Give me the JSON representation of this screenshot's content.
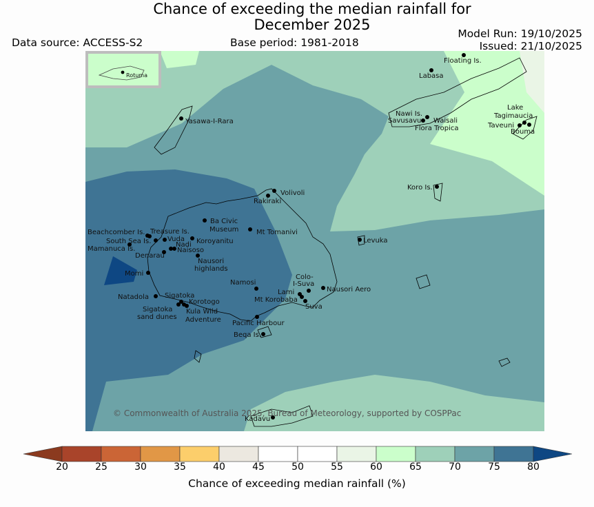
{
  "title_line1": "Chance of exceeding the median rainfall for",
  "title_line2": "December 2025",
  "data_source": "Data source: ACCESS-S2",
  "base_period": "Base period: 1981-2018",
  "model_run": "Model Run: 19/10/2025",
  "issued": "Issued: 21/10/2025",
  "inset_label": "Rotuma",
  "copyright": "© Commonwealth of Australia 2025, Bureau of Meteorology, supported by COSPPac",
  "colorbar": {
    "label": "Chance of exceeding median rainfall (%)",
    "ticks": [
      "20",
      "25",
      "30",
      "35",
      "40",
      "45",
      "50",
      "55",
      "60",
      "65",
      "70",
      "75",
      "80"
    ],
    "colors": [
      "#a9442a",
      "#cb6536",
      "#e19746",
      "#fcce6b",
      "#ece8e0",
      "#ffffff",
      "#ffffff",
      "#eaf5e6",
      "#cbfecb",
      "#9ed0b9",
      "#6da3a7",
      "#3f7494",
      "#0e4783"
    ],
    "extend_low_color": "#8b3a1f",
    "extend_high_color": "#0e4783"
  },
  "places": [
    "Floating Is.",
    "Labasa",
    "Yasawa-I-Rara",
    "Nawi Is.",
    "Savusavu",
    "Waisali",
    "Flora Tropica",
    "Lake",
    "Tagimaucia",
    "Taveuni",
    "Bouma",
    "Koro Is.",
    "Volivoli",
    "Rakiraki",
    "Ba Civic",
    "Museum",
    "Mt Tomanivi",
    "Beachcomber Is.",
    "Treasure Is.",
    "South Sea Is.",
    "Vuda",
    "Koroyanitu",
    "Mamanuca Is.",
    "Nadi",
    "Naisoso",
    "Denarau",
    "Nausori",
    "highlands",
    "Levuka",
    "Momi",
    "Namosi",
    "Colo-",
    "I-Suva",
    "Nausori Aero",
    "Natadola",
    "Sigatoka",
    "Korotogo",
    "Lami",
    "Mt Korobaba",
    "Suva",
    "Sigatoka",
    "sand dunes",
    "Kula Wild",
    "Adventure",
    "Pacific Harbour",
    "Beqa Is.",
    "Kadavu"
  ]
}
